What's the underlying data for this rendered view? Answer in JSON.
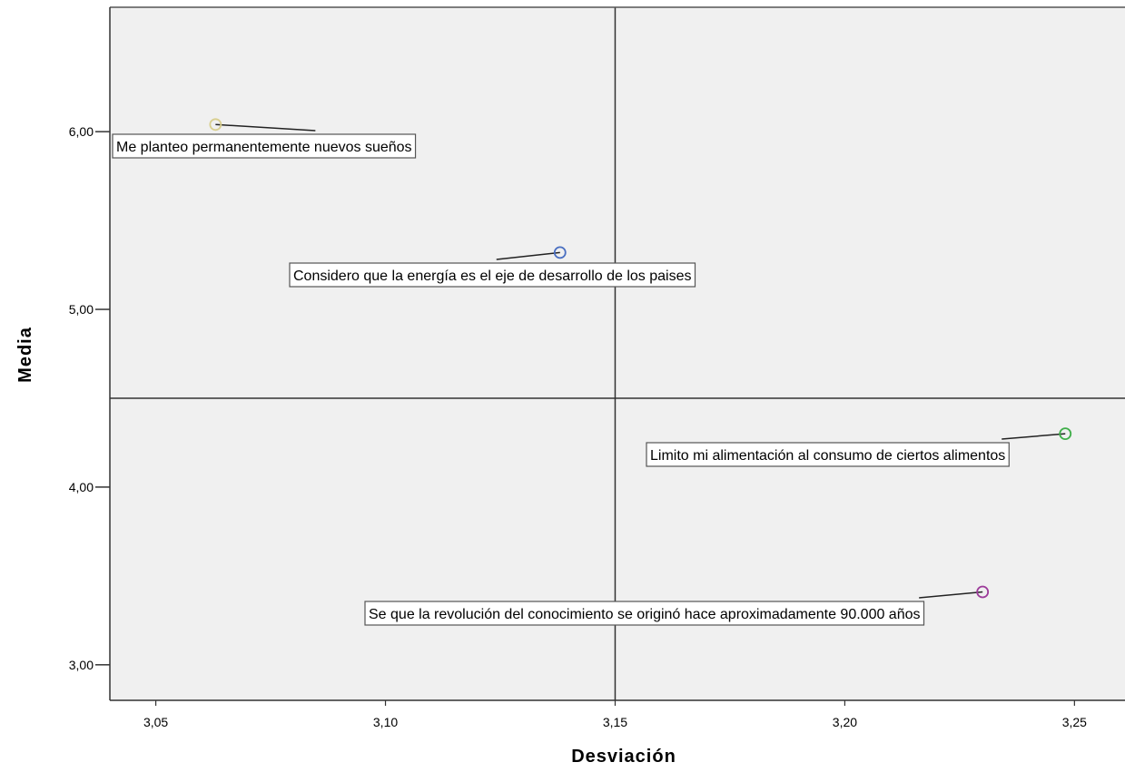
{
  "chart_data": {
    "type": "scatter",
    "xlabel": "Desviación",
    "ylabel": "Media",
    "xlim": [
      3.04,
      3.261
    ],
    "ylim": [
      2.8,
      6.7
    ],
    "x_ticks": [
      3.05,
      3.1,
      3.15,
      3.2,
      3.25
    ],
    "x_tick_labels": [
      "3,05",
      "3,10",
      "3,15",
      "3,20",
      "3,25"
    ],
    "y_ticks": [
      3.0,
      4.0,
      5.0,
      6.0
    ],
    "y_tick_labels": [
      "3,00",
      "4,00",
      "5,00",
      "6,00"
    ],
    "reference_lines": {
      "x": 3.15,
      "y": 4.5
    },
    "grid": false,
    "background": "#f0f0f0",
    "points": [
      {
        "label": "Me planteo permanentemente nuevos sueños",
        "x": 3.063,
        "y": 6.04,
        "color": "#d9cf8f"
      },
      {
        "label": "Considero que la energía es el eje de desarrollo de los paises",
        "x": 3.138,
        "y": 5.32,
        "color": "#4a6fc1"
      },
      {
        "label": "Limito mi alimentación al consumo de ciertos alimentos",
        "x": 3.248,
        "y": 4.3,
        "color": "#3fae49"
      },
      {
        "label": "Se que la revolución del conocimiento se originó hace aproximadamente 90.000 años",
        "x": 3.23,
        "y": 3.41,
        "color": "#9c3b9a"
      }
    ]
  }
}
